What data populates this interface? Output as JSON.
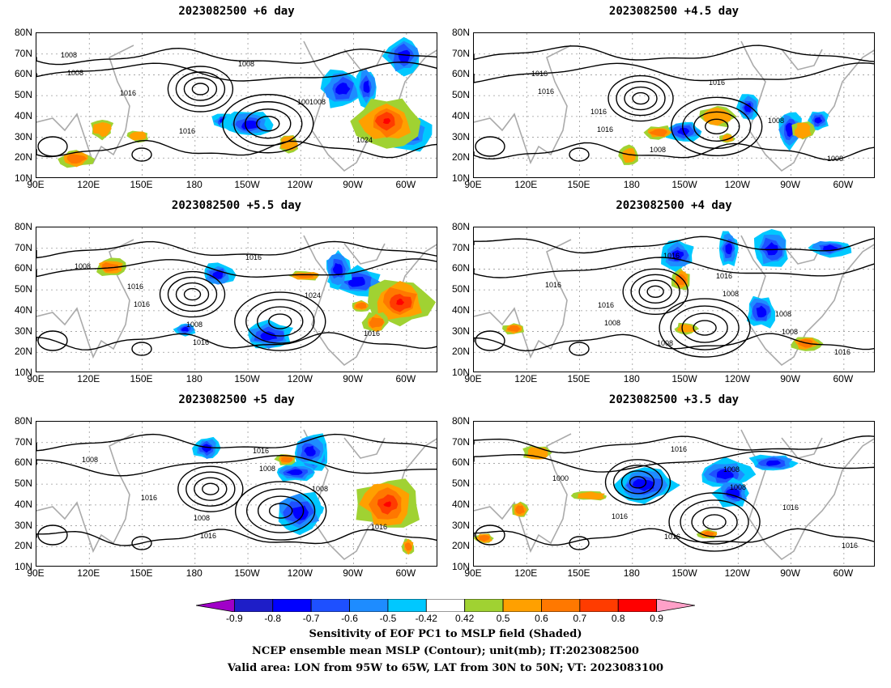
{
  "panels": [
    {
      "title": "2023082500 +6 day",
      "labels": [
        "1008",
        "1016",
        "1016",
        "1008",
        "1001008",
        "1024",
        "1008"
      ]
    },
    {
      "title": "2023082500 +4.5 day",
      "labels": [
        "1016",
        "1016",
        "1008",
        "1016",
        "1008",
        "1008",
        "1016",
        "1016"
      ]
    },
    {
      "title": "2023082500 +5.5 day",
      "labels": [
        "1016",
        "1008",
        "1016",
        "1024",
        "1016",
        "1008",
        "1016",
        "1016"
      ]
    },
    {
      "title": "2023082500 +4 day",
      "labels": [
        "1016",
        "1008",
        "1016",
        "1008",
        "1016",
        "1016",
        "1008",
        "1016",
        "1008",
        "1008"
      ]
    },
    {
      "title": "2023082500 +5 day",
      "labels": [
        "1008",
        "1016",
        "1008",
        "1016",
        "1008",
        "1016",
        "1016",
        "1008"
      ]
    },
    {
      "title": "2023082500 +3.5 day",
      "labels": [
        "1016",
        "1008",
        "1016",
        "1016",
        "1000",
        "1016",
        "1016",
        "1008"
      ]
    }
  ],
  "axes": {
    "lat_ticks": [
      "80N",
      "70N",
      "60N",
      "50N",
      "40N",
      "30N",
      "20N",
      "10N"
    ],
    "lon_ticks": [
      "90E",
      "120E",
      "150E",
      "180",
      "150W",
      "120W",
      "90W",
      "60W"
    ]
  },
  "colorbar": {
    "labels": [
      "-0.9",
      "-0.8",
      "-0.7",
      "-0.6",
      "-0.5",
      "-0.42",
      "0.42",
      "0.5",
      "0.6",
      "0.7",
      "0.8",
      "0.9"
    ],
    "colors": [
      "#a000c8",
      "#1e1ec8",
      "#0000ff",
      "#1e50ff",
      "#1e8cff",
      "#00c8ff",
      "#ffffff",
      "#a0d232",
      "#ffa000",
      "#ff7800",
      "#ff3c00",
      "#ff0000",
      "#ffa0c8"
    ]
  },
  "captions": {
    "line1": "Sensitivity of EOF PC1 to MSLP field (Shaded)",
    "line2": "NCEP ensemble mean MSLP (Contour); unit(mb); IT:2023082500",
    "line3": "Valid area: LON from 95W to 65W, LAT from 30N to 50N; VT: 2023083100"
  },
  "shading": {
    "positive_colors": [
      "#a0d232",
      "#ffa000",
      "#ff7800",
      "#ff3c00",
      "#ff0000",
      "#ffa0c8"
    ],
    "negative_colors": [
      "#00c8ff",
      "#1e8cff",
      "#1e50ff",
      "#0000ff"
    ],
    "land_color": "#aaaaaa",
    "grid_color": "#999999"
  }
}
